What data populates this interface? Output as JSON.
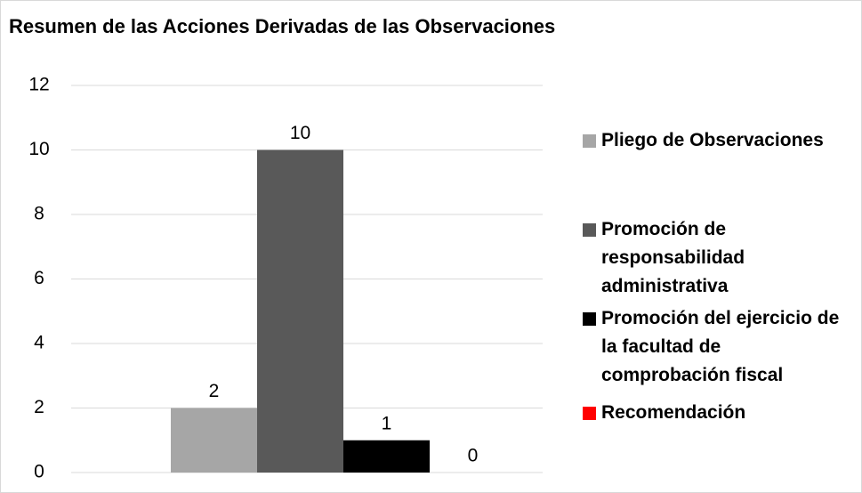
{
  "chart_data": {
    "type": "bar",
    "title": "Resumen de las Acciones Derivadas de las Observaciones",
    "categories": [
      null
    ],
    "series": [
      {
        "name": "Pliego de Observaciones",
        "color": "#a6a6a6",
        "values": [
          2
        ]
      },
      {
        "name": "Promoción de responsabilidad administrativa",
        "color": "#595959",
        "values": [
          10
        ]
      },
      {
        "name": "Promoción del ejercicio de la facultad de comprobación fiscal",
        "color": "#000000",
        "values": [
          1
        ]
      },
      {
        "name": "Recomendación",
        "color": "#ff0000",
        "values": [
          0
        ]
      }
    ],
    "ylim": [
      0,
      12
    ],
    "yticks": [
      0,
      2,
      4,
      6,
      8,
      10,
      12
    ],
    "grid": true,
    "legend": "right"
  }
}
